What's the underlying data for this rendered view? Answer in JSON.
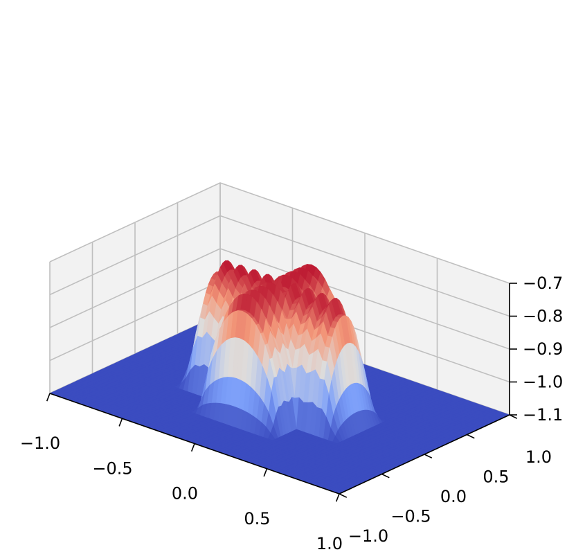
{
  "chart_data": {
    "type": "surface3d",
    "title": "",
    "xlabel": "",
    "ylabel": "",
    "zlabel": "",
    "colormap": "coolwarm",
    "colors": {
      "pane": "#f2f2f2",
      "pane_edge": "#ebebeb",
      "grid": "#bfbfbf",
      "axis": "#000000",
      "low": "#3b4cc0",
      "high": "#b40426"
    },
    "xlim": [
      -1.0,
      1.0
    ],
    "ylim": [
      -1.0,
      1.0
    ],
    "zlim": [
      -1.1,
      -0.7
    ],
    "x_ticks": [
      -1.0,
      -0.5,
      0.0,
      0.5,
      1.0
    ],
    "y_ticks": [
      -1.0,
      -0.5,
      0.0,
      0.5,
      1.0
    ],
    "z_ticks": [
      -1.1,
      -1.0,
      -0.9,
      -0.8,
      -0.7
    ],
    "x_tick_labels": [
      "−1.0",
      "−0.5",
      "0.0",
      "0.5",
      "1.0"
    ],
    "y_tick_labels": [
      "−1.0",
      "−0.5",
      "0.0",
      "0.5",
      "1.0"
    ],
    "z_tick_labels": [
      "−1.1",
      "−1.0",
      "−0.9",
      "−0.8",
      "−0.7"
    ],
    "surface": {
      "base_z": -1.1,
      "peak_z": -0.72,
      "shape": "four-armed cross of ridged arches centred near the origin",
      "arms": [
        {
          "direction": "+x",
          "extent": 0.55
        },
        {
          "direction": "-x",
          "extent": 0.55
        },
        {
          "direction": "+y",
          "extent": 0.55
        },
        {
          "direction": "-y",
          "extent": 0.55
        }
      ]
    }
  }
}
